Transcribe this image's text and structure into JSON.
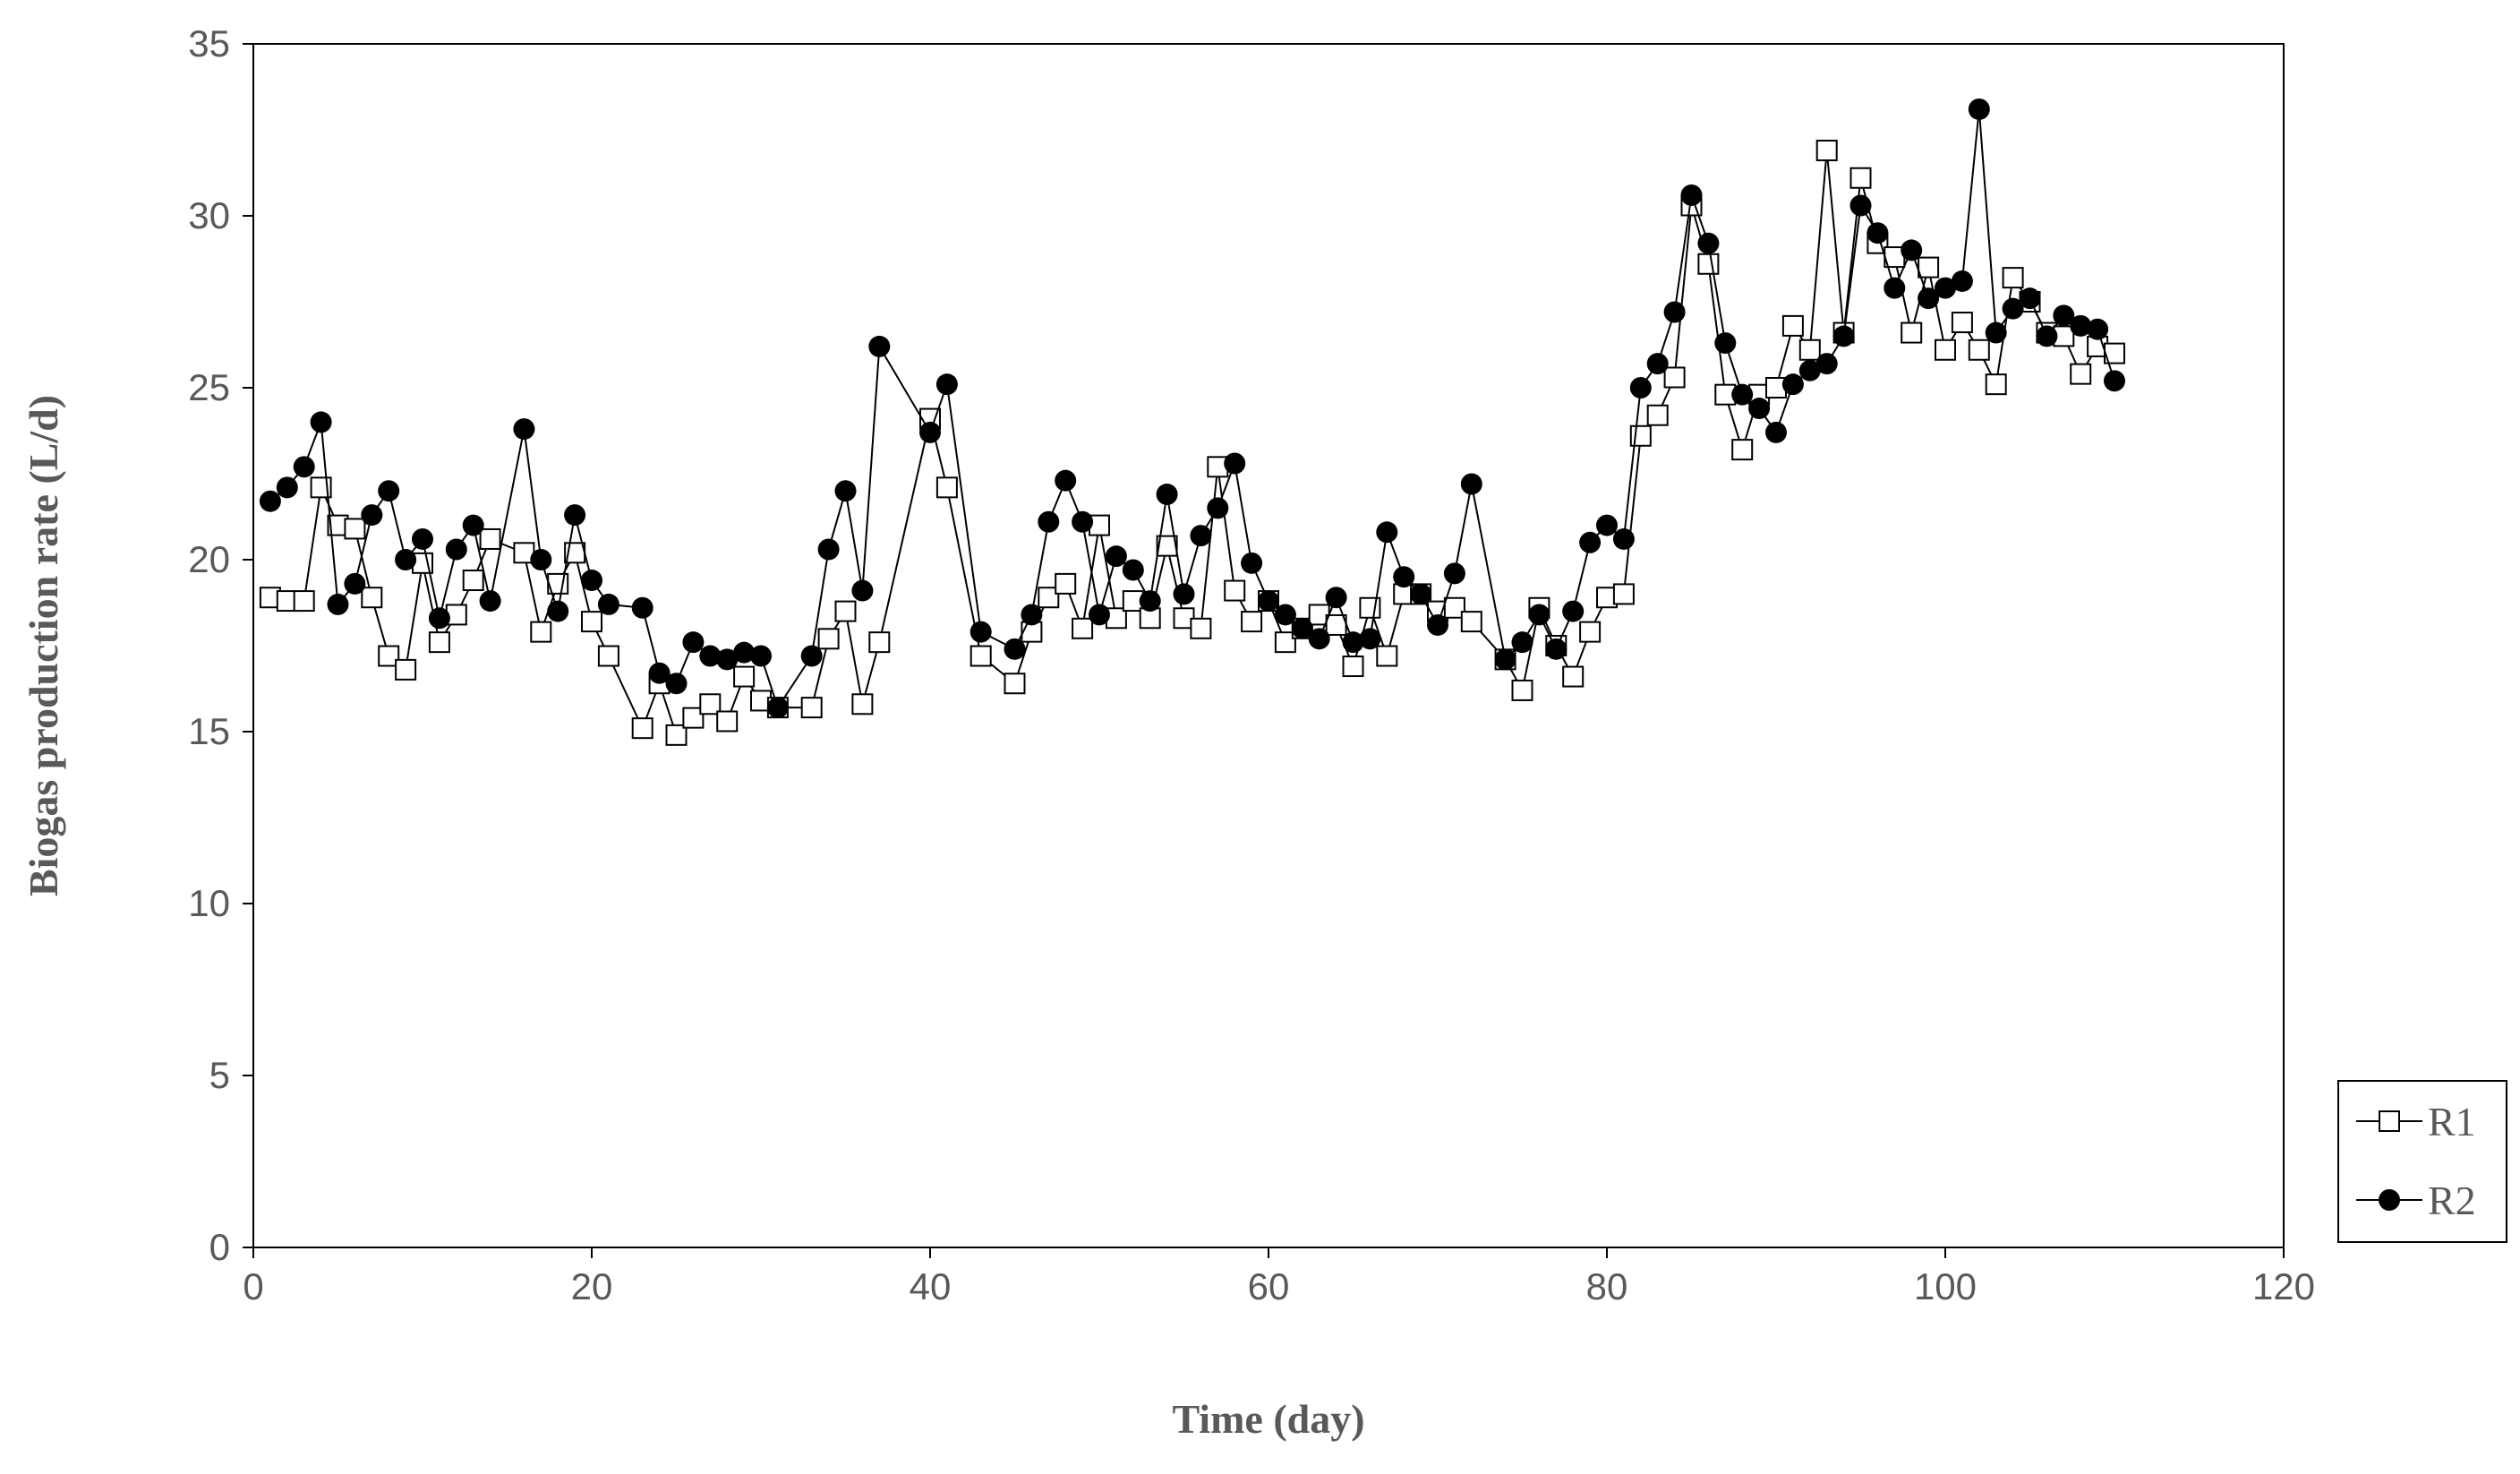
{
  "chart_data": {
    "type": "line",
    "title": "",
    "xlabel": "Time (day)",
    "ylabel": "Biogas production rate (L/d)",
    "xlim": [
      0,
      120
    ],
    "ylim": [
      0,
      35
    ],
    "xticks": [
      "0",
      "20",
      "40",
      "60",
      "80",
      "100",
      "120"
    ],
    "yticks": [
      "0",
      "5",
      "10",
      "15",
      "20",
      "25",
      "30",
      "35"
    ],
    "grid": false,
    "legend": "right-bottom, outside plot",
    "colors": {
      "line": "#000000",
      "axis": "#000000",
      "text": "#595959"
    },
    "series": [
      {
        "name": "R1",
        "marker": "open-square",
        "x": [
          1,
          2,
          3,
          4,
          5,
          6,
          7,
          8,
          9,
          10,
          11,
          12,
          13,
          14,
          16,
          17,
          18,
          19,
          20,
          21,
          23,
          24,
          25,
          26,
          27,
          28,
          29,
          30,
          31,
          33,
          34,
          35,
          36,
          37,
          40,
          41,
          43,
          45,
          46,
          47,
          48,
          49,
          50,
          51,
          52,
          53,
          54,
          55,
          56,
          57,
          58,
          59,
          60,
          61,
          62,
          63,
          64,
          65,
          66,
          67,
          68,
          69,
          70,
          71,
          72,
          74,
          75,
          76,
          77,
          78,
          79,
          80,
          81,
          82,
          83,
          84,
          85,
          86,
          87,
          88,
          89,
          90,
          91,
          92,
          93,
          94,
          95,
          96,
          97,
          98,
          99,
          100,
          101,
          102,
          103,
          104,
          105,
          106,
          107,
          108,
          109,
          110
        ],
        "y": [
          18.9,
          18.8,
          18.8,
          22.1,
          21.0,
          20.9,
          18.9,
          17.2,
          16.8,
          19.9,
          17.6,
          18.4,
          19.4,
          20.6,
          20.2,
          17.9,
          19.3,
          20.2,
          18.2,
          17.2,
          15.1,
          16.4,
          14.9,
          15.4,
          15.8,
          15.3,
          16.6,
          15.9,
          15.7,
          15.7,
          17.7,
          18.5,
          15.8,
          17.6,
          24.1,
          22.1,
          17.2,
          16.4,
          17.9,
          18.9,
          19.3,
          18.0,
          21.0,
          18.3,
          18.8,
          18.3,
          20.4,
          18.3,
          18.0,
          22.7,
          19.1,
          18.2,
          18.8,
          17.6,
          18.0,
          18.4,
          18.1,
          16.9,
          18.6,
          17.2,
          19.0,
          19.0,
          18.5,
          18.6,
          18.2,
          17.1,
          16.2,
          18.6,
          17.5,
          16.6,
          17.9,
          18.9,
          19.0,
          23.6,
          24.2,
          25.3,
          30.3,
          28.6,
          24.8,
          23.2,
          24.8,
          25.0,
          26.8,
          26.1,
          31.9,
          26.6,
          31.1,
          29.2,
          28.8,
          26.6,
          28.5,
          26.1,
          26.9,
          26.1,
          25.1,
          28.2,
          27.5,
          26.6,
          26.5,
          25.4,
          26.2,
          26.0
        ]
      },
      {
        "name": "R2",
        "marker": "filled-circle",
        "x": [
          1,
          2,
          3,
          4,
          5,
          6,
          7,
          8,
          9,
          10,
          11,
          12,
          13,
          14,
          16,
          17,
          18,
          19,
          20,
          21,
          23,
          24,
          25,
          26,
          27,
          28,
          29,
          30,
          31,
          33,
          34,
          35,
          36,
          37,
          40,
          41,
          43,
          45,
          46,
          47,
          48,
          49,
          50,
          51,
          52,
          53,
          54,
          55,
          56,
          57,
          58,
          59,
          60,
          61,
          62,
          63,
          64,
          65,
          66,
          67,
          68,
          69,
          70,
          71,
          72,
          74,
          75,
          76,
          77,
          78,
          79,
          80,
          81,
          82,
          83,
          84,
          85,
          86,
          87,
          88,
          89,
          90,
          91,
          92,
          93,
          94,
          95,
          96,
          97,
          98,
          99,
          100,
          101,
          102,
          103,
          104,
          105,
          106,
          107,
          108,
          109,
          110
        ],
        "y": [
          21.7,
          22.1,
          22.7,
          24.0,
          18.7,
          19.3,
          21.3,
          22.0,
          20.0,
          20.6,
          18.3,
          20.3,
          21.0,
          18.8,
          23.8,
          20.0,
          18.5,
          21.3,
          19.4,
          18.7,
          18.6,
          16.7,
          16.4,
          17.6,
          17.2,
          17.1,
          17.3,
          17.2,
          15.7,
          17.2,
          20.3,
          22.0,
          19.1,
          26.2,
          23.7,
          25.1,
          17.9,
          17.4,
          18.4,
          21.1,
          22.3,
          21.1,
          18.4,
          20.1,
          19.7,
          18.8,
          21.9,
          19.0,
          20.7,
          21.5,
          22.8,
          19.9,
          18.8,
          18.4,
          18.0,
          17.7,
          18.9,
          17.6,
          17.7,
          20.8,
          19.5,
          19.0,
          18.1,
          19.6,
          22.2,
          17.1,
          17.6,
          18.4,
          17.4,
          18.5,
          20.5,
          21.0,
          20.6,
          25.0,
          25.7,
          27.2,
          30.6,
          29.2,
          26.3,
          24.8,
          24.4,
          23.7,
          25.1,
          25.5,
          25.7,
          26.5,
          30.3,
          29.5,
          27.9,
          29.0,
          27.6,
          27.9,
          28.1,
          33.1,
          26.6,
          27.3,
          27.6,
          26.5,
          27.1,
          26.8,
          26.7,
          25.2
        ]
      }
    ]
  }
}
